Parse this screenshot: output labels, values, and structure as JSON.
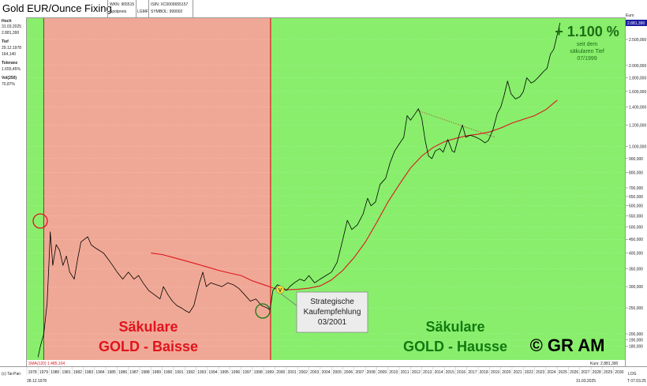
{
  "header": {
    "title": "Gold EUR/Ounce Fixing",
    "wkn": "WKN: 965515",
    "isin": "ISIN: XC0009655157",
    "type": "Spotpreis",
    "exchange": "LGMF",
    "symbol": "SYMBOL: 999002",
    "currency_label": "Euro"
  },
  "stats": [
    {
      "label": "Hoch",
      "lines": [
        "31.03.2025",
        "2.881,390"
      ]
    },
    {
      "label": "Tief",
      "lines": [
        "29.12.1978",
        "164,140"
      ]
    },
    {
      "label": "Toleranz",
      "lines": [
        "1.655,45%"
      ]
    },
    {
      "label": "Vol(250)",
      "lines": [
        "70,87%"
      ]
    }
  ],
  "colors": {
    "baisse_bg": "#f0a896",
    "hausse_bg": "#88ee6c",
    "price_line": "#000000",
    "ma_line": "#e0141e",
    "divider": "#e0141e",
    "gain_text": "#1e6e14",
    "baisse_text": "#e0141e",
    "hausse_text": "#117a11"
  },
  "annotations": {
    "gain_big": "+ 1.100 %",
    "gain_sub": [
      "seit dem",
      "säkularen Tief",
      "07/1999"
    ],
    "baisse": [
      "Säkulare",
      "GOLD - Baisse"
    ],
    "hausse": [
      "Säkulare",
      "GOLD - Hausse"
    ],
    "buy_box": [
      "Strategische",
      "Kaufempfehlung",
      "03/2001"
    ],
    "copyright": "© GR AM",
    "buy_marker": "V"
  },
  "footer": {
    "source": "(c) Tai-Pan",
    "start_date": "28.12.1978",
    "end_date": "31.03.2025",
    "end_date_short": "T 07.03.25",
    "ma_legend": "SMA(120) 1.485,104",
    "last_price": "Kurs: 2.881,390",
    "log_label": "LOG"
  },
  "chart_data": {
    "type": "line",
    "yscale": "log",
    "ylim": [
      160,
      3000
    ],
    "xlim": [
      1978,
      2031
    ],
    "y_ticks": [
      180,
      190,
      200,
      250,
      300,
      350,
      400,
      450,
      500,
      550,
      600,
      650,
      700,
      800,
      900,
      1000,
      1200,
      1400,
      1600,
      1800,
      2000,
      2500
    ],
    "y_tick_labels": [
      "180,000",
      "190,000",
      "200,000",
      "250,000",
      "300,000",
      "350,000",
      "400,000",
      "450,000",
      "500,000",
      "550,000",
      "600,000",
      "650,000",
      "700,000",
      "800,000",
      "900,000",
      "1.000,000",
      "1.200,000",
      "1.400,000",
      "1.600,000",
      "1.800,000",
      "2.000,000",
      "2.500,000"
    ],
    "x_tick_labels": [
      "1978",
      "1979",
      "1980",
      "1981",
      "1982",
      "1983",
      "1984",
      "1985",
      "1986",
      "1987",
      "1988",
      "1989",
      "1990",
      "1991",
      "1992",
      "1993",
      "1994",
      "1995",
      "1996",
      "1997",
      "1998",
      "1999",
      "2000",
      "2001",
      "2002",
      "2003",
      "2004",
      "2005",
      "2006",
      "2007",
      "2008",
      "2009",
      "2010",
      "2011",
      "2012",
      "2013",
      "2014",
      "2015",
      "2016",
      "2017",
      "2018",
      "2019",
      "2020",
      "2021",
      "2022",
      "2023",
      "2024",
      "2025",
      "2026",
      "2027",
      "2028",
      "2029",
      "2030"
    ],
    "regions": [
      {
        "name": "Baisse",
        "from": 1979.5,
        "to": 1999.6
      },
      {
        "name": "Hausse",
        "from": 1999.6,
        "to": 2031
      }
    ],
    "last_value_label": "2.881,390",
    "series": [
      {
        "name": "Gold EUR/Ounce Fixing",
        "points": [
          [
            1978.99,
            164
          ],
          [
            1979.2,
            180
          ],
          [
            1979.5,
            200
          ],
          [
            1979.8,
            260
          ],
          [
            1980.0,
            400
          ],
          [
            1980.08,
            480
          ],
          [
            1980.3,
            360
          ],
          [
            1980.6,
            430
          ],
          [
            1980.9,
            410
          ],
          [
            1981.2,
            360
          ],
          [
            1981.5,
            390
          ],
          [
            1981.8,
            340
          ],
          [
            1982.2,
            320
          ],
          [
            1982.5,
            380
          ],
          [
            1982.8,
            440
          ],
          [
            1983.1,
            450
          ],
          [
            1983.4,
            460
          ],
          [
            1983.7,
            430
          ],
          [
            1984.0,
            420
          ],
          [
            1984.4,
            410
          ],
          [
            1984.8,
            400
          ],
          [
            1985.2,
            380
          ],
          [
            1985.6,
            360
          ],
          [
            1986.0,
            340
          ],
          [
            1986.5,
            320
          ],
          [
            1987.0,
            340
          ],
          [
            1987.5,
            320
          ],
          [
            1987.9,
            330
          ],
          [
            1988.3,
            310
          ],
          [
            1988.8,
            290
          ],
          [
            1989.3,
            280
          ],
          [
            1989.8,
            270
          ],
          [
            1990.1,
            300
          ],
          [
            1990.5,
            280
          ],
          [
            1990.9,
            265
          ],
          [
            1991.3,
            255
          ],
          [
            1991.7,
            250
          ],
          [
            1992.0,
            245
          ],
          [
            1992.4,
            240
          ],
          [
            1992.8,
            255
          ],
          [
            1993.3,
            310
          ],
          [
            1993.6,
            340
          ],
          [
            1993.9,
            300
          ],
          [
            1994.3,
            310
          ],
          [
            1994.8,
            305
          ],
          [
            1995.3,
            300
          ],
          [
            1995.8,
            310
          ],
          [
            1996.3,
            305
          ],
          [
            1996.8,
            295
          ],
          [
            1997.3,
            280
          ],
          [
            1997.8,
            265
          ],
          [
            1998.3,
            270
          ],
          [
            1998.8,
            255
          ],
          [
            1999.3,
            250
          ],
          [
            1999.55,
            245
          ],
          [
            1999.8,
            290
          ],
          [
            2000.2,
            305
          ],
          [
            2000.6,
            300
          ],
          [
            2001.0,
            290
          ],
          [
            2001.3,
            300
          ],
          [
            2001.7,
            310
          ],
          [
            2002.2,
            320
          ],
          [
            2002.6,
            315
          ],
          [
            2003.0,
            330
          ],
          [
            2003.5,
            310
          ],
          [
            2004.0,
            320
          ],
          [
            2004.5,
            330
          ],
          [
            2005.0,
            340
          ],
          [
            2005.5,
            370
          ],
          [
            2006.0,
            450
          ],
          [
            2006.4,
            530
          ],
          [
            2006.8,
            490
          ],
          [
            2007.3,
            510
          ],
          [
            2007.8,
            560
          ],
          [
            2008.2,
            640
          ],
          [
            2008.5,
            600
          ],
          [
            2008.9,
            620
          ],
          [
            2009.3,
            720
          ],
          [
            2009.8,
            760
          ],
          [
            2010.2,
            870
          ],
          [
            2010.6,
            960
          ],
          [
            2011.0,
            1020
          ],
          [
            2011.4,
            1080
          ],
          [
            2011.7,
            1300
          ],
          [
            2012.0,
            1250
          ],
          [
            2012.4,
            1320
          ],
          [
            2012.7,
            1380
          ],
          [
            2013.0,
            1270
          ],
          [
            2013.3,
            1050
          ],
          [
            2013.6,
            920
          ],
          [
            2013.9,
            900
          ],
          [
            2014.2,
            960
          ],
          [
            2014.6,
            980
          ],
          [
            2014.9,
            950
          ],
          [
            2015.3,
            1060
          ],
          [
            2015.7,
            960
          ],
          [
            2015.9,
            950
          ],
          [
            2016.3,
            1100
          ],
          [
            2016.6,
            1200
          ],
          [
            2016.9,
            1080
          ],
          [
            2017.3,
            1100
          ],
          [
            2017.8,
            1080
          ],
          [
            2018.2,
            1060
          ],
          [
            2018.6,
            1030
          ],
          [
            2018.9,
            1050
          ],
          [
            2019.3,
            1150
          ],
          [
            2019.7,
            1330
          ],
          [
            2020.0,
            1400
          ],
          [
            2020.3,
            1550
          ],
          [
            2020.6,
            1750
          ],
          [
            2020.9,
            1570
          ],
          [
            2021.3,
            1500
          ],
          [
            2021.7,
            1530
          ],
          [
            2022.0,
            1600
          ],
          [
            2022.3,
            1800
          ],
          [
            2022.7,
            1720
          ],
          [
            2023.0,
            1750
          ],
          [
            2023.4,
            1820
          ],
          [
            2023.8,
            1900
          ],
          [
            2024.1,
            1950
          ],
          [
            2024.4,
            2200
          ],
          [
            2024.7,
            2300
          ],
          [
            2024.95,
            2550
          ],
          [
            2025.25,
            2881
          ]
        ]
      },
      {
        "name": "SMA(120)",
        "points": [
          [
            1989.0,
            400
          ],
          [
            1990.0,
            395
          ],
          [
            1991.0,
            385
          ],
          [
            1992.0,
            375
          ],
          [
            1993.0,
            365
          ],
          [
            1994.0,
            355
          ],
          [
            1995.0,
            345
          ],
          [
            1996.0,
            337
          ],
          [
            1997.0,
            330
          ],
          [
            1998.0,
            315
          ],
          [
            1999.0,
            305
          ],
          [
            2000.0,
            295
          ],
          [
            2001.0,
            292
          ],
          [
            2002.0,
            293
          ],
          [
            2003.0,
            296
          ],
          [
            2004.0,
            302
          ],
          [
            2005.0,
            318
          ],
          [
            2006.0,
            345
          ],
          [
            2007.0,
            385
          ],
          [
            2008.0,
            440
          ],
          [
            2009.0,
            520
          ],
          [
            2010.0,
            620
          ],
          [
            2011.0,
            720
          ],
          [
            2012.0,
            830
          ],
          [
            2013.0,
            920
          ],
          [
            2014.0,
            990
          ],
          [
            2015.0,
            1040
          ],
          [
            2016.0,
            1070
          ],
          [
            2017.0,
            1095
          ],
          [
            2018.0,
            1110
          ],
          [
            2019.0,
            1130
          ],
          [
            2020.0,
            1170
          ],
          [
            2021.0,
            1220
          ],
          [
            2022.0,
            1260
          ],
          [
            2023.0,
            1300
          ],
          [
            2024.0,
            1370
          ],
          [
            2025.0,
            1485
          ]
        ]
      }
    ],
    "trend_line": [
      [
        2012.6,
        1360
      ],
      [
        2019.5,
        1080
      ]
    ]
  }
}
